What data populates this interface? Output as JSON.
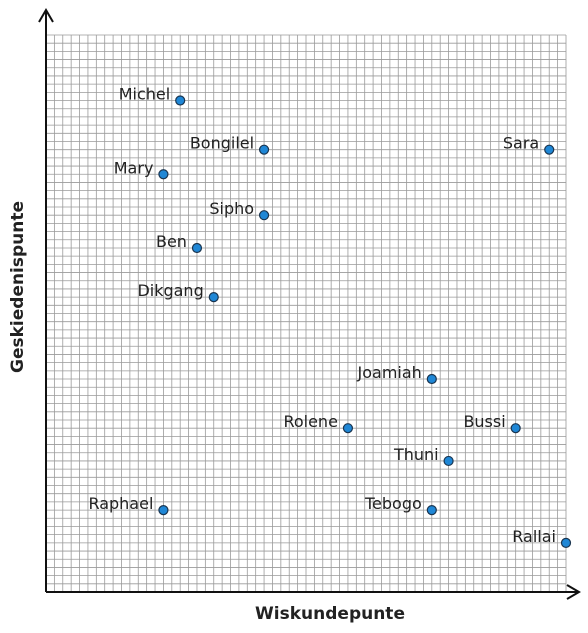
{
  "chart_data": {
    "type": "scatter",
    "xlabel": "Wiskundepunte",
    "ylabel": "Geskiedenispunte",
    "xlim": [
      0,
      31
    ],
    "ylim": [
      0,
      34
    ],
    "grid": true,
    "points": [
      {
        "label": "Michel",
        "x": 8,
        "y": 30
      },
      {
        "label": "Bongilel",
        "x": 13,
        "y": 27
      },
      {
        "label": "Sara",
        "x": 30,
        "y": 27
      },
      {
        "label": "Mary",
        "x": 7,
        "y": 25.5
      },
      {
        "label": "Sipho",
        "x": 13,
        "y": 23
      },
      {
        "label": "Ben",
        "x": 9,
        "y": 21
      },
      {
        "label": "Dikgang",
        "x": 10,
        "y": 18
      },
      {
        "label": "Joamiah",
        "x": 23,
        "y": 13
      },
      {
        "label": "Bussi",
        "x": 28,
        "y": 10
      },
      {
        "label": "Rolene",
        "x": 18,
        "y": 10
      },
      {
        "label": "Thuni",
        "x": 24,
        "y": 8
      },
      {
        "label": "Raphael",
        "x": 7,
        "y": 5
      },
      {
        "label": "Tebogo",
        "x": 23,
        "y": 5
      },
      {
        "label": "Rallai",
        "x": 31,
        "y": 3
      }
    ],
    "colors": {
      "point": "#1f87d6",
      "point_stroke": "#1a3550",
      "grid": "#9a9a9a",
      "axis": "#111111"
    }
  }
}
